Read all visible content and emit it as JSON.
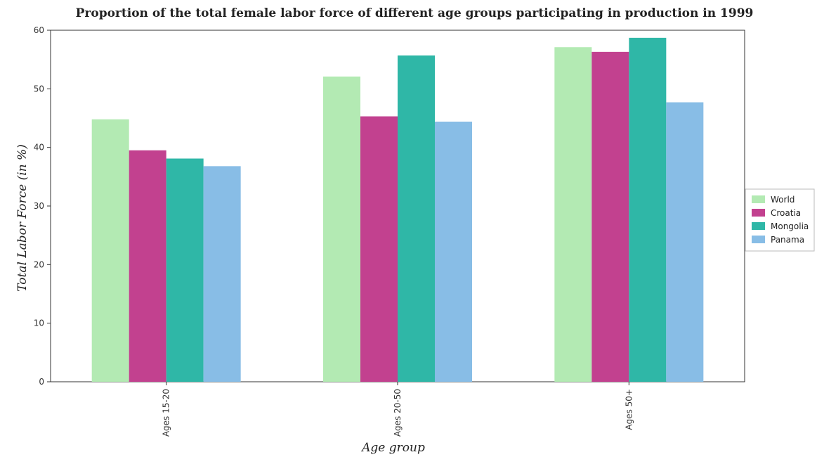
{
  "chart_data": {
    "type": "bar",
    "title": "Proportion of the total female labor force of different age groups participating in production in 1999",
    "xlabel": "Age group",
    "ylabel": "Total Labor Force (in %)",
    "categories": [
      "Ages 15-20",
      "Ages 20-50",
      "Ages 50+"
    ],
    "ylim": [
      0,
      60
    ],
    "yticks": [
      0,
      10,
      20,
      30,
      40,
      50,
      60
    ],
    "grid": false,
    "legend_position": "right",
    "series": [
      {
        "name": "World",
        "color": "#b3eab3",
        "values": [
          44.8,
          52.1,
          57.1
        ]
      },
      {
        "name": "Croatia",
        "color": "#c2418f",
        "values": [
          39.5,
          45.3,
          56.3
        ]
      },
      {
        "name": "Mongolia",
        "color": "#2fb7a7",
        "values": [
          38.1,
          55.7,
          58.7
        ]
      },
      {
        "name": "Panama",
        "color": "#88bde6",
        "values": [
          36.8,
          44.4,
          47.7
        ]
      }
    ]
  }
}
